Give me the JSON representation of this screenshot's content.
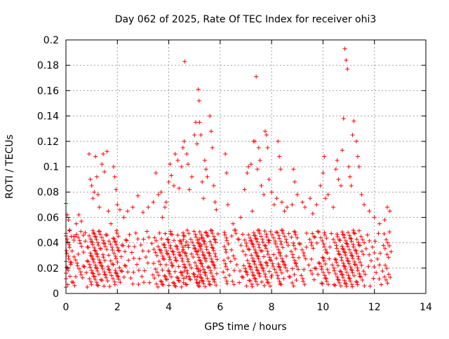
{
  "chart_data": {
    "type": "scatter",
    "title": "Day 062 of 2025, Rate Of TEC Index for receiver ohi3",
    "xlabel": "GPS time / hours",
    "ylabel": "ROTI / TECUs",
    "xlim": [
      0,
      14
    ],
    "ylim": [
      0,
      0.2
    ],
    "xticks": [
      "0",
      "2",
      "4",
      "6",
      "8",
      "10",
      "12",
      "14"
    ],
    "yticks": [
      "0",
      "0.02",
      "0.04",
      "0.06",
      "0.08",
      "0.1",
      "0.12",
      "0.14",
      "0.16",
      "0.18",
      "0.2"
    ],
    "grid": true,
    "marker": "+",
    "marker_color": "#ff0000",
    "data_gaps_hours": [
      [
        5.95,
        6.15
      ]
    ],
    "series": [
      {
        "points": [
          [
            0.0,
            0.071
          ],
          [
            0.05,
            0.062
          ],
          [
            0.1,
            0.058
          ],
          [
            0.15,
            0.05
          ],
          [
            0.3,
            0.045
          ],
          [
            0.4,
            0.055
          ],
          [
            0.5,
            0.062
          ],
          [
            0.6,
            0.057
          ],
          [
            0.75,
            0.048
          ],
          [
            0.9,
            0.11
          ],
          [
            0.95,
            0.09
          ],
          [
            1.0,
            0.085
          ],
          [
            1.05,
            0.075
          ],
          [
            1.1,
            0.08
          ],
          [
            1.15,
            0.108
          ],
          [
            1.2,
            0.092
          ],
          [
            1.25,
            0.078
          ],
          [
            1.3,
            0.068
          ],
          [
            1.4,
            0.102
          ],
          [
            1.45,
            0.11
          ],
          [
            1.5,
            0.096
          ],
          [
            1.6,
            0.112
          ],
          [
            1.65,
            0.065
          ],
          [
            1.75,
            0.055
          ],
          [
            1.85,
            0.1
          ],
          [
            1.9,
            0.092
          ],
          [
            1.95,
            0.082
          ],
          [
            2.0,
            0.07
          ],
          [
            2.1,
            0.066
          ],
          [
            2.25,
            0.06
          ],
          [
            2.4,
            0.065
          ],
          [
            2.6,
            0.068
          ],
          [
            2.8,
            0.077
          ],
          [
            3.0,
            0.064
          ],
          [
            3.2,
            0.068
          ],
          [
            3.4,
            0.072
          ],
          [
            3.5,
            0.095
          ],
          [
            3.6,
            0.078
          ],
          [
            3.7,
            0.08
          ],
          [
            3.75,
            0.06
          ],
          [
            3.85,
            0.068
          ],
          [
            3.9,
            0.072
          ],
          [
            4.0,
            0.088
          ],
          [
            4.05,
            0.102
          ],
          [
            4.1,
            0.093
          ],
          [
            4.2,
            0.085
          ],
          [
            4.25,
            0.11
          ],
          [
            4.35,
            0.105
          ],
          [
            4.4,
            0.083
          ],
          [
            4.5,
            0.1
          ],
          [
            4.55,
            0.115
          ],
          [
            4.6,
            0.12
          ],
          [
            4.62,
            0.183
          ],
          [
            4.7,
            0.11
          ],
          [
            4.75,
            0.102
          ],
          [
            4.8,
            0.082
          ],
          [
            4.9,
            0.092
          ],
          [
            5.0,
            0.125
          ],
          [
            5.05,
            0.135
          ],
          [
            5.1,
            0.118
          ],
          [
            5.15,
            0.161
          ],
          [
            5.18,
            0.152
          ],
          [
            5.2,
            0.135
          ],
          [
            5.25,
            0.125
          ],
          [
            5.3,
            0.088
          ],
          [
            5.35,
            0.075
          ],
          [
            5.4,
            0.105
          ],
          [
            5.45,
            0.098
          ],
          [
            5.5,
            0.092
          ],
          [
            5.6,
            0.14
          ],
          [
            5.65,
            0.128
          ],
          [
            5.7,
            0.115
          ],
          [
            5.75,
            0.085
          ],
          [
            5.8,
            0.072
          ],
          [
            5.85,
            0.066
          ],
          [
            6.2,
            0.11
          ],
          [
            6.25,
            0.095
          ],
          [
            6.3,
            0.07
          ],
          [
            6.5,
            0.055
          ],
          [
            6.6,
            0.05
          ],
          [
            6.8,
            0.06
          ],
          [
            6.95,
            0.082
          ],
          [
            7.05,
            0.095
          ],
          [
            7.1,
            0.1
          ],
          [
            7.2,
            0.102
          ],
          [
            7.25,
            0.065
          ],
          [
            7.3,
            0.12
          ],
          [
            7.35,
            0.12
          ],
          [
            7.4,
            0.171
          ],
          [
            7.45,
            0.098
          ],
          [
            7.5,
            0.115
          ],
          [
            7.55,
            0.105
          ],
          [
            7.6,
            0.085
          ],
          [
            7.7,
            0.078
          ],
          [
            7.75,
            0.128
          ],
          [
            7.8,
            0.125
          ],
          [
            7.85,
            0.115
          ],
          [
            7.9,
            0.09
          ],
          [
            8.0,
            0.08
          ],
          [
            8.1,
            0.07
          ],
          [
            8.2,
            0.075
          ],
          [
            8.25,
            0.12
          ],
          [
            8.3,
            0.108
          ],
          [
            8.35,
            0.098
          ],
          [
            8.4,
            0.072
          ],
          [
            8.5,
            0.065
          ],
          [
            8.6,
            0.068
          ],
          [
            8.8,
            0.07
          ],
          [
            8.85,
            0.098
          ],
          [
            8.9,
            0.088
          ],
          [
            9.0,
            0.078
          ],
          [
            9.2,
            0.072
          ],
          [
            9.3,
            0.068
          ],
          [
            9.5,
            0.075
          ],
          [
            9.6,
            0.063
          ],
          [
            9.75,
            0.07
          ],
          [
            9.9,
            0.085
          ],
          [
            10.0,
            0.095
          ],
          [
            10.05,
            0.108
          ],
          [
            10.1,
            0.075
          ],
          [
            10.2,
            0.078
          ],
          [
            10.4,
            0.068
          ],
          [
            10.5,
            0.098
          ],
          [
            10.55,
            0.105
          ],
          [
            10.6,
            0.09
          ],
          [
            10.7,
            0.085
          ],
          [
            10.75,
            0.113
          ],
          [
            10.8,
            0.138
          ],
          [
            10.85,
            0.193
          ],
          [
            10.9,
            0.184
          ],
          [
            10.95,
            0.177
          ],
          [
            11.0,
            0.1
          ],
          [
            11.05,
            0.092
          ],
          [
            11.1,
            0.085
          ],
          [
            11.15,
            0.125
          ],
          [
            11.2,
            0.136
          ],
          [
            11.3,
            0.12
          ],
          [
            11.35,
            0.108
          ],
          [
            11.4,
            0.1
          ],
          [
            11.5,
            0.078
          ],
          [
            11.6,
            0.07
          ],
          [
            11.8,
            0.065
          ],
          [
            12.0,
            0.06
          ],
          [
            12.2,
            0.055
          ],
          [
            12.4,
            0.058
          ],
          [
            12.5,
            0.068
          ],
          [
            12.6,
            0.065
          ]
        ]
      }
    ]
  }
}
